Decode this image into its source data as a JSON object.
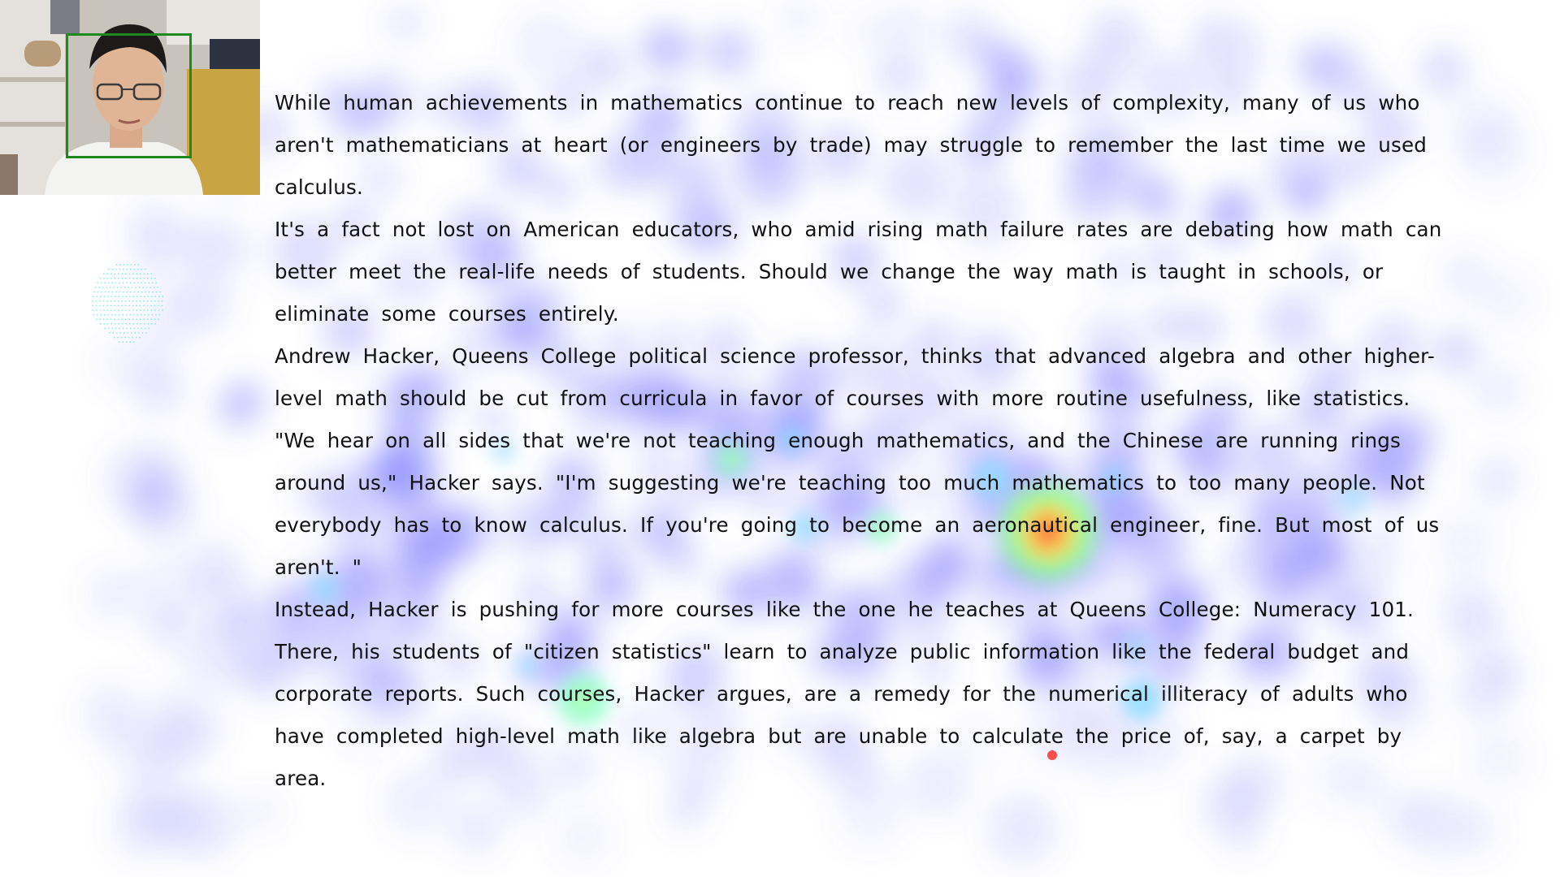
{
  "passage": {
    "paragraphs": [
      "While human achievements in mathematics continue to reach new levels of complexity, many of us who aren't mathematicians at heart (or engineers by trade) may struggle to remember the last time we used calculus.",
      "It's a fact not lost on American educators, who amid rising math failure rates are debating how math can better meet the real-life needs of students. Should we change the way math is taught in schools, or eliminate some courses entirely.",
      "Andrew Hacker, Queens College political science professor, thinks that advanced algebra and other higher-level math should be cut from curricula in favor of courses with more routine usefulness, like statistics.",
      "\"We hear on all sides that we're not teaching enough mathematics, and the Chinese are running rings around us,\" Hacker says. \"I'm suggesting we're teaching too much mathematics to too many people. Not everybody has to know calculus. If you're going to become an aeronautical engineer, fine. But most of us aren't. \"",
      "Instead, Hacker is pushing for more courses like the one he teaches at Queens College: Numeracy 101. There, his students of \"citizen statistics\" learn to analyze public information like the federal budget and corporate reports. Such courses, Hacker argues, are a remedy for the numerical illiteracy of adults who have completed high-level math like algebra but are unable to calculate the price of, say, a carpet by area."
    ]
  },
  "colors": {
    "text": "#111111",
    "face_box": "#1e8a1e",
    "gaze_dot": "#ff4d4d",
    "face_mesh": "#6fe3e3",
    "heat_low": "#6a6aff",
    "heat_mid": "#7dffb0",
    "heat_high": "#ff5030"
  },
  "icons": {
    "webcam": "webcam-preview",
    "face_mesh": "face-landmark-mesh",
    "gaze": "gaze-point-dot"
  }
}
